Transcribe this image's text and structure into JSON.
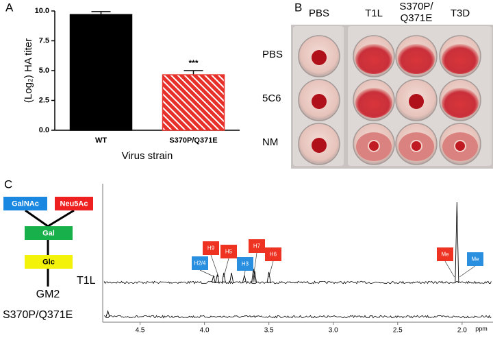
{
  "panels": [
    "A",
    "B",
    "C"
  ],
  "chart_data": [
    {
      "type": "bar",
      "categories": [
        "WT",
        "S370P/Q371E"
      ],
      "values": [
        9.7,
        4.65
      ],
      "errors": [
        0.25,
        0.35
      ],
      "colors": [
        "#000000",
        "#e8302a"
      ],
      "annotation": "***",
      "x_label": "Virus strain",
      "y_label": "(Log₂) HA titer",
      "ylim": [
        0,
        10
      ],
      "yticks": [
        {
          "value": 0,
          "label": "0.0"
        },
        {
          "value": 2.5,
          "label": "2.5"
        },
        {
          "value": 5,
          "label": "5.0"
        },
        {
          "value": 7.5,
          "label": "7.5"
        },
        {
          "value": 10,
          "label": "10.0"
        }
      ]
    },
    {
      "type": "nmr",
      "x_label": "ppm",
      "xlim": [
        4.79,
        1.76
      ],
      "xticks": [
        4.5,
        {
          "value": 4,
          "label": "4.0"
        },
        3.5,
        {
          "value": 3,
          "label": "3.0"
        },
        2.5,
        {
          "value": 2,
          "label": "2.0"
        }
      ],
      "series": [
        {
          "name": "T1L",
          "color": "#000000",
          "peaks": [
            3.93,
            3.9,
            3.85,
            3.79,
            3.69,
            3.62,
            3.61,
            3.5,
            2.04
          ],
          "intensities": [
            8,
            10,
            12,
            12,
            9,
            17,
            14,
            13,
            100
          ]
        },
        {
          "name": "S370P/Q371E",
          "color": "#000000",
          "peaks": [
            4.75
          ],
          "intensities": [
            7
          ]
        }
      ],
      "annotations": [
        {
          "label": "H2/4",
          "ppm": 3.92,
          "color": "#2b8fe0"
        },
        {
          "label": "H9",
          "ppm": 3.89,
          "color": "#ee3322"
        },
        {
          "label": "H5",
          "ppm": 3.85,
          "color": "#ee3322"
        },
        {
          "label": "H3",
          "ppm": 3.69,
          "color": "#2b8fe0"
        },
        {
          "label": "H7",
          "ppm": 3.62,
          "color": "#ee3322"
        },
        {
          "label": "H6",
          "ppm": 3.5,
          "color": "#ee3322"
        },
        {
          "label": "Me",
          "ppm": 2.06,
          "color": "#ee3322"
        },
        {
          "label": "Me",
          "ppm": 2.02,
          "color": "#2b8fe0"
        }
      ]
    }
  ],
  "plate": {
    "columns": [
      [
        "PBS"
      ],
      [
        "T1L"
      ],
      [
        "S370P/",
        "Q371E"
      ],
      [
        "T3D"
      ]
    ],
    "rows": [
      "PBS",
      "5C6",
      "NM"
    ]
  },
  "glycan": {
    "nodes": [
      {
        "label": "GalNAc",
        "color": "#1a88e0"
      },
      {
        "label": "Neu5Ac",
        "color": "#ee2020"
      },
      {
        "label": "Gal",
        "color": "#18b04a"
      },
      {
        "label": "Glc",
        "color": "#f2f20a"
      }
    ],
    "name": "GM2"
  }
}
